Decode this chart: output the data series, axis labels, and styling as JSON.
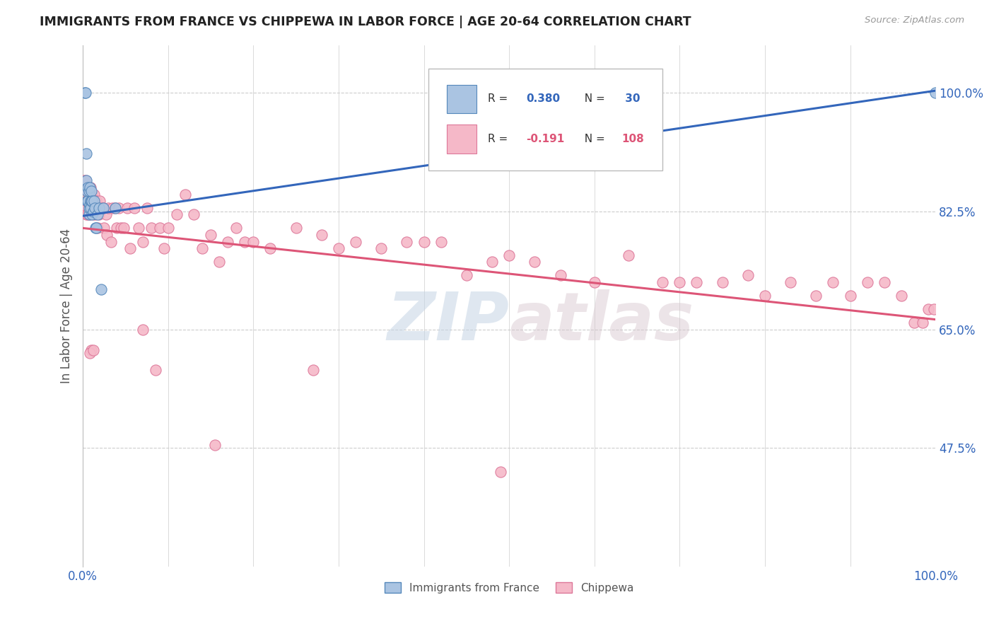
{
  "title": "IMMIGRANTS FROM FRANCE VS CHIPPEWA IN LABOR FORCE | AGE 20-64 CORRELATION CHART",
  "source": "Source: ZipAtlas.com",
  "ylabel": "In Labor Force | Age 20-64",
  "ytick_labels": [
    "100.0%",
    "82.5%",
    "65.0%",
    "47.5%"
  ],
  "ytick_values": [
    1.0,
    0.825,
    0.65,
    0.475
  ],
  "watermark_zip": "ZIP",
  "watermark_atlas": "atlas",
  "legend_r1_label": "R = ",
  "legend_r1_val": "0.380",
  "legend_n1_label": "N = ",
  "legend_n1_val": " 30",
  "legend_r2_label": "R = ",
  "legend_r2_val": "-0.191",
  "legend_n2_label": "N = ",
  "legend_n2_val": "108",
  "france_color": "#aac4e2",
  "chippewa_color": "#f5b8c8",
  "france_edge": "#5588bb",
  "chippewa_edge": "#dd7799",
  "line_france_color": "#3366bb",
  "line_chippewa_color": "#dd5577",
  "legend_france_color": "#aac4e2",
  "legend_chippewa_color": "#f5b8c8",
  "legend_france_edge": "#5588bb",
  "legend_chippewa_edge": "#dd7799",
  "r_val_color": "#3366bb",
  "r2_val_color": "#dd5577",
  "ytick_color": "#3366bb",
  "xtick_color": "#3366bb",
  "ylabel_color": "#555555",
  "grid_color": "#cccccc",
  "title_color": "#222222",
  "source_color": "#999999",
  "france_line_slope": 0.185,
  "france_line_intercept": 0.818,
  "chippewa_line_slope": -0.135,
  "chippewa_line_intercept": 0.8,
  "france_points_x": [
    0.002,
    0.003,
    0.004,
    0.004,
    0.005,
    0.005,
    0.006,
    0.006,
    0.007,
    0.007,
    0.007,
    0.008,
    0.008,
    0.009,
    0.009,
    0.01,
    0.01,
    0.011,
    0.011,
    0.012,
    0.013,
    0.014,
    0.015,
    0.016,
    0.017,
    0.019,
    0.021,
    0.024,
    0.038,
    1.0
  ],
  "france_points_y": [
    1.0,
    1.0,
    0.87,
    0.91,
    0.855,
    0.84,
    0.86,
    0.84,
    0.855,
    0.82,
    0.83,
    0.835,
    0.86,
    0.84,
    0.83,
    0.84,
    0.855,
    0.82,
    0.84,
    0.825,
    0.84,
    0.83,
    0.8,
    0.8,
    0.82,
    0.83,
    0.71,
    0.83,
    0.83,
    1.0
  ],
  "chippewa_points_x": [
    0.001,
    0.002,
    0.002,
    0.003,
    0.003,
    0.004,
    0.004,
    0.005,
    0.005,
    0.006,
    0.006,
    0.007,
    0.007,
    0.008,
    0.008,
    0.009,
    0.009,
    0.01,
    0.01,
    0.011,
    0.011,
    0.012,
    0.012,
    0.013,
    0.013,
    0.014,
    0.014,
    0.015,
    0.015,
    0.016,
    0.017,
    0.018,
    0.019,
    0.02,
    0.022,
    0.024,
    0.025,
    0.027,
    0.028,
    0.03,
    0.033,
    0.035,
    0.038,
    0.04,
    0.042,
    0.045,
    0.048,
    0.052,
    0.055,
    0.06,
    0.065,
    0.07,
    0.075,
    0.08,
    0.09,
    0.095,
    0.1,
    0.11,
    0.12,
    0.13,
    0.14,
    0.15,
    0.16,
    0.17,
    0.18,
    0.19,
    0.2,
    0.22,
    0.25,
    0.28,
    0.3,
    0.32,
    0.35,
    0.38,
    0.4,
    0.42,
    0.45,
    0.48,
    0.5,
    0.53,
    0.56,
    0.6,
    0.64,
    0.68,
    0.7,
    0.72,
    0.75,
    0.78,
    0.8,
    0.83,
    0.86,
    0.88,
    0.9,
    0.92,
    0.94,
    0.96,
    0.975,
    0.985,
    0.992,
    0.998,
    0.49,
    0.155,
    0.085,
    0.27,
    0.07,
    0.01,
    0.008,
    0.012
  ],
  "chippewa_points_y": [
    0.87,
    0.83,
    0.86,
    0.83,
    0.87,
    0.82,
    0.84,
    0.855,
    0.84,
    0.82,
    0.855,
    0.84,
    0.86,
    0.84,
    0.82,
    0.83,
    0.86,
    0.84,
    0.84,
    0.83,
    0.85,
    0.84,
    0.82,
    0.84,
    0.85,
    0.83,
    0.83,
    0.84,
    0.82,
    0.84,
    0.8,
    0.83,
    0.82,
    0.84,
    0.83,
    0.83,
    0.8,
    0.82,
    0.79,
    0.83,
    0.78,
    0.83,
    0.83,
    0.8,
    0.83,
    0.8,
    0.8,
    0.83,
    0.77,
    0.83,
    0.8,
    0.78,
    0.83,
    0.8,
    0.8,
    0.77,
    0.8,
    0.82,
    0.85,
    0.82,
    0.77,
    0.79,
    0.75,
    0.78,
    0.8,
    0.78,
    0.78,
    0.77,
    0.8,
    0.79,
    0.77,
    0.78,
    0.77,
    0.78,
    0.78,
    0.78,
    0.73,
    0.75,
    0.76,
    0.75,
    0.73,
    0.72,
    0.76,
    0.72,
    0.72,
    0.72,
    0.72,
    0.73,
    0.7,
    0.72,
    0.7,
    0.72,
    0.7,
    0.72,
    0.72,
    0.7,
    0.66,
    0.66,
    0.68,
    0.68,
    0.44,
    0.48,
    0.59,
    0.59,
    0.65,
    0.62,
    0.615,
    0.62
  ]
}
